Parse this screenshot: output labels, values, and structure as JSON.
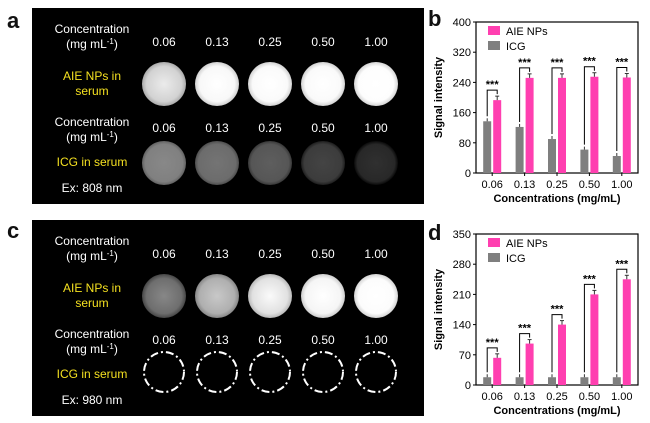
{
  "panel_a": {
    "letter": "a",
    "row1_label": [
      "Concentration",
      "(mg mL",
      "-1",
      ")"
    ],
    "row2_label": [
      "AIE NPs in",
      "serum"
    ],
    "row3_label": [
      "Concentration",
      "(mg mL",
      "-1",
      ")"
    ],
    "row4_label": [
      "ICG in serum"
    ],
    "ex_label": "Ex: 808 nm",
    "concentrations": [
      "0.06",
      "0.13",
      "0.25",
      "0.50",
      "1.00"
    ],
    "aie_circle_gray": [
      210,
      248,
      250,
      250,
      253
    ],
    "icg_circle_gray": [
      128,
      108,
      86,
      60,
      40
    ],
    "label_color_text": "#ffffff",
    "label_color_sample": "#f4e020"
  },
  "panel_c": {
    "letter": "c",
    "row1_label": [
      "Concentration",
      "(mg mL",
      "-1",
      ")"
    ],
    "row2_label": [
      "AIE NPs in",
      "serum"
    ],
    "row3_label": [
      "Concentration",
      "(mg mL",
      "-1",
      ")"
    ],
    "row4_label": [
      "ICG in serum"
    ],
    "ex_label": "Ex: 980 nm",
    "concentrations": [
      "0.06",
      "0.13",
      "0.25",
      "0.50",
      "1.00"
    ],
    "aie_circle_gray": [
      110,
      175,
      225,
      245,
      252
    ],
    "icg_circle_style": "dash-dot-outline"
  },
  "chart_data": [
    {
      "panel": "b",
      "type": "bar",
      "categories": [
        "0.06",
        "0.13",
        "0.25",
        "0.50",
        "1.00"
      ],
      "xlabel": "Concentrations (mg/mL)",
      "ylabel": "Signal intensity",
      "ylim": [
        0,
        400
      ],
      "yticks": [
        0,
        80,
        160,
        240,
        320,
        400
      ],
      "series": [
        {
          "name": "AIE NPs",
          "color": "#ff3fb0",
          "values": [
            193,
            252,
            252,
            255,
            253
          ]
        },
        {
          "name": "ICG",
          "color": "#7f7f7f",
          "values": [
            137,
            122,
            90,
            62,
            45
          ]
        }
      ],
      "annotations": [
        "***",
        "***",
        "***",
        "***",
        "***"
      ],
      "legend": "top-left"
    },
    {
      "panel": "d",
      "type": "bar",
      "categories": [
        "0.06",
        "0.13",
        "0.25",
        "0.50",
        "1.00"
      ],
      "xlabel": "Concentrations (mg/mL)",
      "ylabel": "Signal intensity",
      "ylim": [
        0,
        350
      ],
      "yticks": [
        0,
        70,
        140,
        210,
        280,
        350
      ],
      "series": [
        {
          "name": "AIE NPs",
          "color": "#ff3fb0",
          "values": [
            63,
            96,
            140,
            210,
            245
          ]
        },
        {
          "name": "ICG",
          "color": "#7f7f7f",
          "values": [
            18,
            18,
            18,
            18,
            18
          ]
        }
      ],
      "annotations": [
        "***",
        "***",
        "***",
        "***",
        "***"
      ],
      "legend": "top-left"
    }
  ]
}
